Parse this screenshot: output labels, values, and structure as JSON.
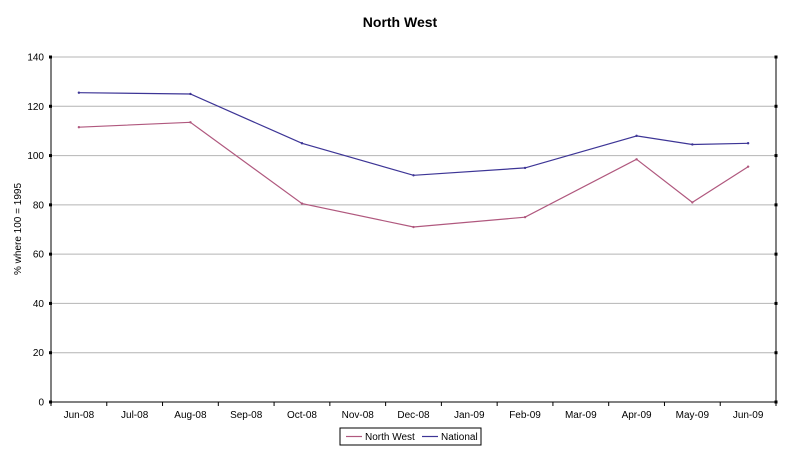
{
  "chart_data": {
    "type": "line",
    "title": "North West",
    "xlabel": "",
    "ylabel": "% where 100 = 1995",
    "ylim": [
      0,
      140
    ],
    "yticks": [
      0,
      20,
      40,
      60,
      80,
      100,
      120,
      140
    ],
    "grid": true,
    "legend_position": "bottom",
    "categories": [
      "Jun-08",
      "Jul-08",
      "Aug-08",
      "Sep-08",
      "Oct-08",
      "Nov-08",
      "Dec-08",
      "Jan-09",
      "Feb-09",
      "Mar-09",
      "Apr-09",
      "May-09",
      "Jun-09"
    ],
    "series": [
      {
        "name": "North West",
        "color": "#b0587e",
        "points": [
          {
            "x": "Jun-08",
            "y": 111.5
          },
          {
            "x": "Aug-08",
            "y": 113.5
          },
          {
            "x": "Oct-08",
            "y": 80.5
          },
          {
            "x": "Dec-08",
            "y": 71
          },
          {
            "x": "Feb-09",
            "y": 75
          },
          {
            "x": "Apr-09",
            "y": 98.5
          },
          {
            "x": "May-09",
            "y": 81
          },
          {
            "x": "Jun-09",
            "y": 95.5
          }
        ]
      },
      {
        "name": "National",
        "color": "#3d3596",
        "points": [
          {
            "x": "Jun-08",
            "y": 125.5
          },
          {
            "x": "Aug-08",
            "y": 125
          },
          {
            "x": "Oct-08",
            "y": 105
          },
          {
            "x": "Dec-08",
            "y": 92
          },
          {
            "x": "Feb-09",
            "y": 95
          },
          {
            "x": "Apr-09",
            "y": 108
          },
          {
            "x": "May-09",
            "y": 104.5
          },
          {
            "x": "Jun-09",
            "y": 105
          }
        ]
      }
    ]
  }
}
